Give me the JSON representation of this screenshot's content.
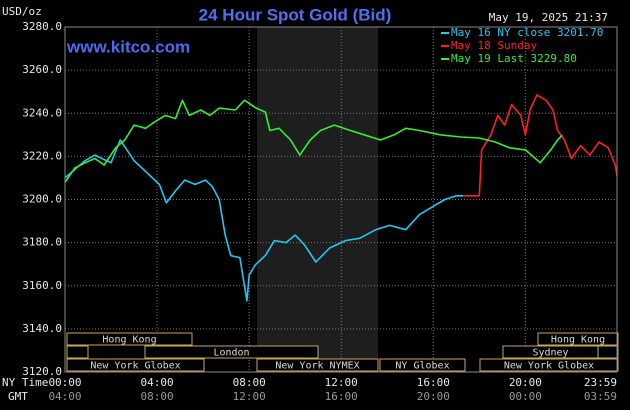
{
  "chart_data": {
    "type": "line",
    "title": "24 Hour Spot Gold (Bid)",
    "y_unit": "USD/oz",
    "site": "www.kitco.com",
    "timestamp": "May 19, 2025 21:37",
    "x_row_label": "NY Time",
    "x2_row_label": "GMT",
    "xlim": [
      0,
      23.98
    ],
    "xticks": [
      {
        "value": 0,
        "label": "00:00"
      },
      {
        "value": 4,
        "label": "04:00"
      },
      {
        "value": 8,
        "label": "08:00"
      },
      {
        "value": 12,
        "label": "12:00"
      },
      {
        "value": 16,
        "label": "16:00"
      },
      {
        "value": 20,
        "label": "20:00"
      },
      {
        "value": 23.98,
        "label": "23:59"
      }
    ],
    "x2_tick_labels": [
      "04:00",
      "08:00",
      "12:00",
      "16:00",
      "20:00",
      "00:00",
      "03:59"
    ],
    "ylim": [
      3120,
      3280
    ],
    "yticks": [
      {
        "value": 3120,
        "label": "3120.0"
      },
      {
        "value": 3140,
        "label": "3140.0"
      },
      {
        "value": 3160,
        "label": "3160.0"
      },
      {
        "value": 3180,
        "label": "3180.0"
      },
      {
        "value": 3200,
        "label": "3200.0"
      },
      {
        "value": 3220,
        "label": "3220.0"
      },
      {
        "value": 3240,
        "label": "3240.0"
      },
      {
        "value": 3260,
        "label": "3260.0"
      },
      {
        "value": 3280,
        "label": "3280.0"
      }
    ],
    "grid": true,
    "series": [
      {
        "name": "May 16 NY close 3201.70",
        "color": "#22c8f0",
        "x": [
          0,
          0.87,
          1.3,
          2,
          2.4,
          3,
          3.7,
          4.1,
          4.4,
          4.8,
          5.2,
          5.65,
          6.1,
          6.4,
          6.7,
          6.96,
          7.2,
          7.6,
          7.9,
          8,
          8.26,
          8.7,
          9.1,
          9.6,
          10,
          10.4,
          10.9,
          11.5,
          12.2,
          12.8,
          13.5,
          14.1,
          14.8,
          15.4,
          16.1,
          16.5,
          17,
          17.3
        ],
        "values": [
          3210,
          3218,
          3220.6,
          3217,
          3227.6,
          3218,
          3211,
          3207,
          3198.4,
          3204,
          3209,
          3207,
          3209,
          3206,
          3200,
          3183.5,
          3174,
          3173,
          3153,
          3165,
          3169.6,
          3174,
          3181,
          3180,
          3183.5,
          3179,
          3171,
          3177.5,
          3181,
          3182,
          3186,
          3188,
          3186,
          3193,
          3197.5,
          3200,
          3201.7,
          3201.7
        ]
      },
      {
        "name": "May 18 Sunday",
        "color": "#ff2020",
        "x": [
          17.3,
          18,
          18.1,
          18.5,
          18.8,
          19.1,
          19.4,
          19.8,
          20,
          20.2,
          20.5,
          20.9,
          21.2,
          21.4,
          21.7,
          22,
          22.4,
          22.8,
          23.2,
          23.6,
          23.9,
          23.98
        ],
        "values": [
          3201.7,
          3201.7,
          3223,
          3230,
          3239,
          3234.5,
          3244,
          3239,
          3230,
          3241.5,
          3248.5,
          3246,
          3241.5,
          3232,
          3227.6,
          3219,
          3225,
          3220.6,
          3226.6,
          3224,
          3216,
          3211
        ]
      },
      {
        "name": "May 19 Last 3229.80",
        "color": "#30f030",
        "x": [
          0,
          0.43,
          0.87,
          1.3,
          1.7,
          2.2,
          2.6,
          3,
          3.5,
          3.9,
          4.35,
          4.8,
          5.1,
          5.4,
          5.9,
          6.3,
          6.7,
          7.4,
          7.8,
          8.3,
          8.7,
          8.9,
          9.3,
          9.8,
          10.2,
          10.65,
          11.1,
          11.7,
          12.4,
          13,
          13.7,
          14.3,
          14.8,
          15.4,
          16.3,
          17.2,
          18,
          18.7,
          19.3,
          20,
          20.65,
          21.1,
          21.4,
          21.6
        ],
        "values": [
          3208,
          3214.6,
          3217,
          3219,
          3216,
          3224,
          3227.6,
          3234.5,
          3233,
          3236,
          3239,
          3237.5,
          3246,
          3239,
          3241.5,
          3239,
          3242.4,
          3241.5,
          3246,
          3242.4,
          3240.6,
          3232,
          3233,
          3227.6,
          3220.6,
          3227.6,
          3232,
          3234.5,
          3232,
          3230,
          3227.6,
          3230,
          3233,
          3232,
          3230,
          3229,
          3228.5,
          3226.6,
          3224,
          3223,
          3217,
          3223,
          3227.6,
          3229.8
        ]
      }
    ],
    "sessions": [
      "Hong Kong",
      "Hong Kong",
      "London",
      "Sydney",
      "New York Globex",
      "New York NYMEX",
      "NY Globex",
      "New York Globex"
    ]
  }
}
